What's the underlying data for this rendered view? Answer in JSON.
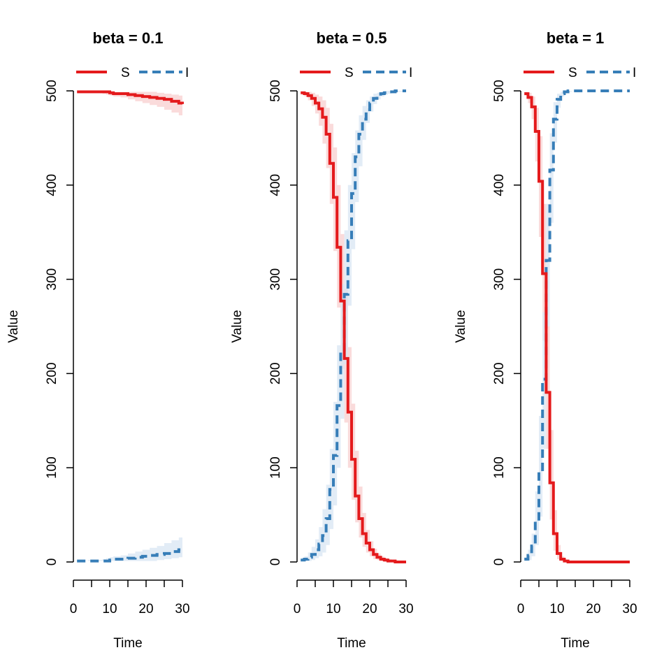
{
  "colors": {
    "S": "#E41A1C",
    "I": "#377EB8",
    "S_band": "#F8CFCF",
    "I_band": "#D8E6F3"
  },
  "chart_data": [
    {
      "type": "line",
      "title": "beta = 0.1",
      "xlabel": "Time",
      "ylabel": "Value",
      "xlim": [
        0,
        30
      ],
      "ylim": [
        0,
        500
      ],
      "x_ticks": [
        0,
        10,
        20,
        30
      ],
      "x_minor_ticks": [
        0,
        5,
        10,
        15,
        20,
        25,
        30
      ],
      "y_ticks": [
        0,
        100,
        200,
        300,
        400,
        500
      ],
      "legend": [
        "S",
        "I"
      ],
      "series": [
        {
          "name": "S",
          "style": "solid",
          "step": true,
          "x": [
            1,
            2,
            4,
            6,
            8,
            9,
            10,
            11,
            13,
            15,
            17,
            19,
            21,
            23,
            25,
            27,
            29,
            30
          ],
          "values": [
            499,
            499,
            499,
            499,
            499,
            499,
            498,
            497,
            497,
            496,
            495,
            494,
            493,
            492,
            491,
            489,
            487,
            486
          ],
          "lower": [
            499,
            499,
            498,
            498,
            497,
            496,
            495,
            494,
            493,
            491,
            489,
            487,
            485,
            483,
            480,
            477,
            474,
            472
          ],
          "upper": [
            499,
            499,
            499,
            499,
            499,
            499,
            499,
            499,
            499,
            499,
            499,
            499,
            499,
            498,
            497,
            496,
            495,
            494
          ]
        },
        {
          "name": "I",
          "style": "dashed",
          "step": true,
          "x": [
            1,
            2,
            4,
            6,
            8,
            9,
            10,
            11,
            13,
            15,
            17,
            19,
            21,
            23,
            25,
            27,
            29,
            30
          ],
          "values": [
            1,
            1,
            1,
            1,
            1,
            1,
            2,
            3,
            3,
            4,
            5,
            6,
            7,
            8,
            9,
            11,
            13,
            14
          ],
          "lower": [
            1,
            1,
            1,
            1,
            1,
            1,
            1,
            1,
            1,
            1,
            1,
            1,
            1,
            2,
            3,
            4,
            5,
            6
          ],
          "upper": [
            1,
            1,
            2,
            2,
            3,
            4,
            5,
            6,
            7,
            9,
            11,
            13,
            15,
            17,
            20,
            23,
            26,
            28
          ]
        }
      ]
    },
    {
      "type": "line",
      "title": "beta = 0.5",
      "xlabel": "Time",
      "ylabel": "Value",
      "xlim": [
        0,
        30
      ],
      "ylim": [
        0,
        500
      ],
      "x_ticks": [
        0,
        10,
        20,
        30
      ],
      "x_minor_ticks": [
        0,
        5,
        10,
        15,
        20,
        25,
        30
      ],
      "y_ticks": [
        0,
        100,
        200,
        300,
        400,
        500
      ],
      "legend": [
        "S",
        "I"
      ],
      "series": [
        {
          "name": "S",
          "style": "solid",
          "step": true,
          "x": [
            1,
            2,
            3,
            4,
            5,
            6,
            7,
            8,
            9,
            10,
            11,
            12,
            13,
            14,
            15,
            16,
            17,
            18,
            19,
            20,
            21,
            22,
            23,
            24,
            25,
            26,
            27,
            28,
            29,
            30
          ],
          "values": [
            498,
            497,
            495,
            492,
            487,
            481,
            472,
            454,
            423,
            387,
            334,
            277,
            216,
            159,
            109,
            70,
            46,
            30,
            20,
            13,
            8,
            5,
            3,
            2,
            1,
            1,
            0,
            0,
            0,
            0
          ],
          "lower": [
            497,
            494,
            490,
            484,
            476,
            463,
            444,
            418,
            380,
            330,
            270,
            205,
            148,
            100,
            66,
            42,
            26,
            16,
            10,
            6,
            3,
            2,
            1,
            0,
            0,
            0,
            0,
            0,
            0,
            0
          ],
          "upper": [
            499,
            499,
            499,
            498,
            496,
            494,
            490,
            482,
            465,
            440,
            400,
            348,
            290,
            228,
            168,
            118,
            80,
            52,
            34,
            22,
            14,
            9,
            6,
            4,
            3,
            2,
            1,
            1,
            1,
            0
          ]
        },
        {
          "name": "I",
          "style": "dashed",
          "step": true,
          "x": [
            1,
            2,
            3,
            4,
            5,
            6,
            7,
            8,
            9,
            10,
            11,
            12,
            13,
            14,
            15,
            16,
            17,
            18,
            19,
            20,
            21,
            22,
            23,
            24,
            25,
            26,
            27,
            28,
            29,
            30
          ],
          "values": [
            2,
            3,
            5,
            8,
            13,
            19,
            28,
            46,
            77,
            113,
            166,
            223,
            284,
            341,
            391,
            430,
            454,
            470,
            480,
            487,
            492,
            495,
            497,
            498,
            499,
            499,
            500,
            500,
            500,
            500
          ],
          "lower": [
            1,
            1,
            1,
            2,
            4,
            6,
            10,
            18,
            35,
            60,
            100,
            152,
            210,
            272,
            332,
            382,
            420,
            448,
            466,
            478,
            486,
            491,
            494,
            496,
            497,
            498,
            499,
            499,
            499,
            500
          ],
          "upper": [
            3,
            6,
            10,
            16,
            24,
            37,
            56,
            82,
            120,
            170,
            230,
            295,
            352,
            400,
            434,
            458,
            474,
            484,
            490,
            494,
            497,
            498,
            499,
            500,
            500,
            500,
            500,
            500,
            500,
            500
          ]
        }
      ]
    },
    {
      "type": "line",
      "title": "beta = 1",
      "xlabel": "Time",
      "ylabel": "Value",
      "xlim": [
        0,
        30
      ],
      "ylim": [
        0,
        500
      ],
      "x_ticks": [
        0,
        10,
        20,
        30
      ],
      "x_minor_ticks": [
        0,
        5,
        10,
        15,
        20,
        25,
        30
      ],
      "y_ticks": [
        0,
        100,
        200,
        300,
        400,
        500
      ],
      "legend": [
        "S",
        "I"
      ],
      "series": [
        {
          "name": "S",
          "style": "solid",
          "step": true,
          "x": [
            1,
            2,
            3,
            4,
            5,
            6,
            7,
            8,
            9,
            10,
            11,
            12,
            13,
            14,
            15,
            16,
            17,
            18,
            19,
            20,
            21,
            22,
            23,
            24,
            25,
            26,
            27,
            28,
            29,
            30
          ],
          "values": [
            497,
            493,
            483,
            457,
            404,
            306,
            180,
            84,
            30,
            9,
            3,
            1,
            0,
            0,
            0,
            0,
            0,
            0,
            0,
            0,
            0,
            0,
            0,
            0,
            0,
            0,
            0,
            0,
            0,
            0
          ],
          "lower": [
            495,
            487,
            470,
            425,
            345,
            235,
            120,
            45,
            12,
            3,
            1,
            0,
            0,
            0,
            0,
            0,
            0,
            0,
            0,
            0,
            0,
            0,
            0,
            0,
            0,
            0,
            0,
            0,
            0,
            0
          ],
          "upper": [
            499,
            498,
            494,
            482,
            452,
            380,
            250,
            140,
            55,
            18,
            6,
            2,
            1,
            0,
            0,
            0,
            0,
            0,
            0,
            0,
            0,
            0,
            0,
            0,
            0,
            0,
            0,
            0,
            0,
            0
          ]
        },
        {
          "name": "I",
          "style": "dashed",
          "step": true,
          "x": [
            1,
            2,
            3,
            4,
            5,
            6,
            7,
            8,
            9,
            10,
            11,
            12,
            13,
            14,
            15,
            16,
            17,
            18,
            19,
            20,
            21,
            22,
            23,
            24,
            25,
            26,
            27,
            28,
            29,
            30
          ],
          "values": [
            3,
            7,
            17,
            43,
            96,
            194,
            320,
            416,
            470,
            491,
            497,
            499,
            500,
            500,
            500,
            500,
            500,
            500,
            500,
            500,
            500,
            500,
            500,
            500,
            500,
            500,
            500,
            500,
            500,
            500
          ],
          "lower": [
            1,
            2,
            6,
            18,
            48,
            120,
            250,
            360,
            445,
            482,
            494,
            498,
            499,
            500,
            500,
            500,
            500,
            500,
            500,
            500,
            500,
            500,
            500,
            500,
            500,
            500,
            500,
            500,
            500,
            500
          ],
          "upper": [
            5,
            13,
            30,
            75,
            155,
            265,
            380,
            455,
            488,
            497,
            499,
            500,
            500,
            500,
            500,
            500,
            500,
            500,
            500,
            500,
            500,
            500,
            500,
            500,
            500,
            500,
            500,
            500,
            500,
            500
          ]
        }
      ]
    }
  ]
}
